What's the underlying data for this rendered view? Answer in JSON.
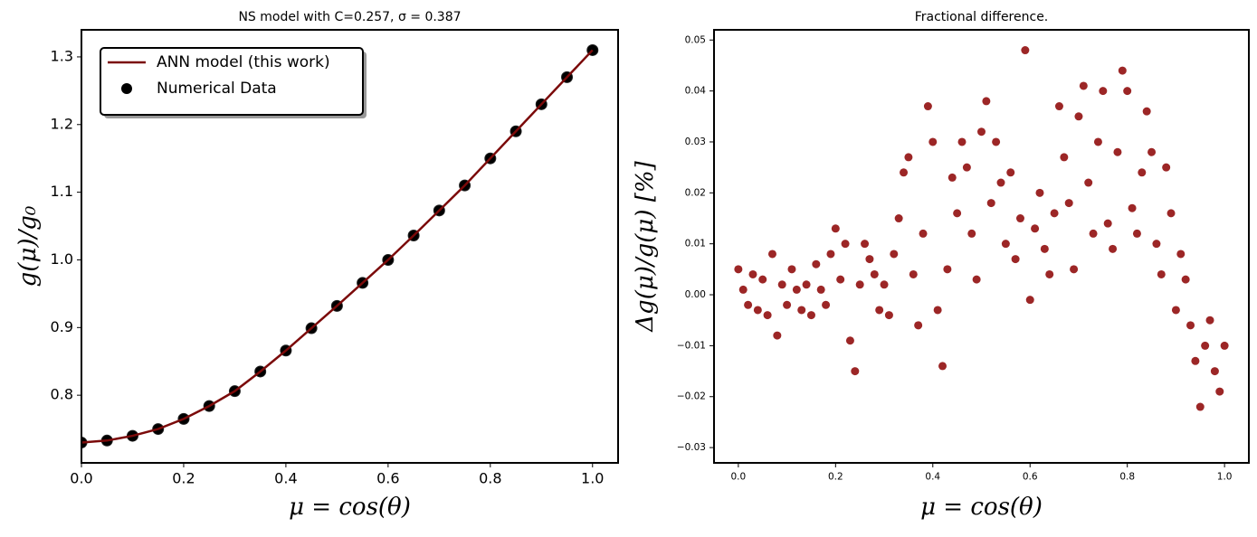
{
  "chart_data": [
    {
      "type": "line",
      "title": "NS model with C=0.257, σ = 0.387",
      "xlabel": "μ = cos(θ)",
      "ylabel": "g(μ)/g₀",
      "x": [
        0,
        0.05,
        0.1,
        0.15,
        0.2,
        0.25,
        0.3,
        0.35,
        0.4,
        0.45,
        0.5,
        0.55,
        0.6,
        0.65,
        0.7,
        0.75,
        0.8,
        0.85,
        0.9,
        0.95,
        1.0
      ],
      "series": [
        {
          "name": "ANN model (this work)",
          "type": "line",
          "color": "#7b0a0a",
          "values": [
            0.73,
            0.733,
            0.74,
            0.75,
            0.765,
            0.784,
            0.806,
            0.835,
            0.866,
            0.899,
            0.932,
            0.966,
            1.0,
            1.036,
            1.073,
            1.11,
            1.15,
            1.19,
            1.23,
            1.27,
            1.31
          ]
        },
        {
          "name": "Numerical Data",
          "type": "scatter",
          "color": "#000000",
          "values": [
            0.73,
            0.733,
            0.74,
            0.75,
            0.765,
            0.784,
            0.806,
            0.835,
            0.866,
            0.899,
            0.932,
            0.966,
            1.0,
            1.036,
            1.073,
            1.11,
            1.15,
            1.19,
            1.23,
            1.27,
            1.31
          ]
        }
      ],
      "xlim": [
        0,
        1.05
      ],
      "xticks": [
        {
          "value": 0,
          "label": "0.0"
        },
        0.2,
        0.4,
        0.6,
        0.8,
        {
          "value": 1,
          "label": "1.0"
        }
      ],
      "ylim": [
        0.7,
        1.34
      ],
      "yticks": [
        0.8,
        0.9,
        {
          "value": 1,
          "label": "1.0"
        },
        1.1,
        1.2,
        1.3
      ],
      "legend": "upper left",
      "grid": false
    },
    {
      "type": "scatter",
      "title": "Fractional difference.",
      "xlabel": "μ = cos(θ)",
      "ylabel": "Δg(μ)/g(μ)  [%]",
      "color": "#8b0000",
      "x": [
        0,
        0.01,
        0.02,
        0.03,
        0.04,
        0.05,
        0.06,
        0.07,
        0.08,
        0.09,
        0.1,
        0.11,
        0.12,
        0.13,
        0.14,
        0.15,
        0.16,
        0.17,
        0.18,
        0.19,
        0.2,
        0.21,
        0.22,
        0.23,
        0.24,
        0.25,
        0.26,
        0.27,
        0.28,
        0.29,
        0.3,
        0.31,
        0.32,
        0.33,
        0.34,
        0.35,
        0.36,
        0.37,
        0.38,
        0.39,
        0.4,
        0.41,
        0.42,
        0.43,
        0.44,
        0.45,
        0.46,
        0.47,
        0.48,
        0.49,
        0.5,
        0.51,
        0.52,
        0.53,
        0.54,
        0.55,
        0.56,
        0.57,
        0.58,
        0.59,
        0.6,
        0.61,
        0.62,
        0.63,
        0.64,
        0.65,
        0.66,
        0.67,
        0.68,
        0.69,
        0.7,
        0.71,
        0.72,
        0.73,
        0.74,
        0.75,
        0.76,
        0.77,
        0.78,
        0.79,
        0.8,
        0.81,
        0.82,
        0.83,
        0.84,
        0.85,
        0.86,
        0.87,
        0.88,
        0.89,
        0.9,
        0.91,
        0.92,
        0.93,
        0.94,
        0.95,
        0.96,
        0.97,
        0.98,
        0.99,
        1.0
      ],
      "values": [
        0.005,
        0.001,
        -0.002,
        0.004,
        -0.003,
        0.003,
        -0.004,
        0.008,
        -0.008,
        0.002,
        -0.002,
        0.005,
        0.001,
        -0.003,
        0.002,
        -0.004,
        0.006,
        0.001,
        -0.002,
        0.008,
        0.013,
        0.003,
        0.01,
        -0.009,
        -0.015,
        0.002,
        0.01,
        0.007,
        0.004,
        -0.003,
        0.002,
        -0.004,
        0.008,
        0.015,
        0.024,
        0.027,
        0.004,
        -0.006,
        0.012,
        0.037,
        0.03,
        -0.003,
        -0.014,
        0.005,
        0.023,
        0.016,
        0.03,
        0.025,
        0.012,
        0.003,
        0.032,
        0.038,
        0.018,
        0.03,
        0.022,
        0.01,
        0.024,
        0.007,
        0.015,
        0.048,
        -0.001,
        0.013,
        0.02,
        0.009,
        0.004,
        0.016,
        0.037,
        0.027,
        0.018,
        0.005,
        0.035,
        0.041,
        0.022,
        0.012,
        0.03,
        0.04,
        0.014,
        0.009,
        0.028,
        0.044,
        0.04,
        0.017,
        0.012,
        0.024,
        0.036,
        0.028,
        0.01,
        0.004,
        0.025,
        0.016,
        -0.003,
        0.008,
        0.003,
        -0.006,
        -0.013,
        -0.022,
        -0.01,
        -0.005,
        -0.015,
        -0.019,
        -0.01
      ],
      "xlim": [
        -0.05,
        1.05
      ],
      "xticks": [
        {
          "value": 0,
          "label": "0.0"
        },
        0.2,
        0.4,
        0.6,
        0.8,
        {
          "value": 1,
          "label": "1.0"
        }
      ],
      "ylim": [
        -0.033,
        0.052
      ],
      "yticks": [
        {
          "value": -0.03,
          "label": "−0.03"
        },
        {
          "value": -0.02,
          "label": "−0.02"
        },
        {
          "value": -0.01,
          "label": "−0.01"
        },
        {
          "value": 0,
          "label": "0.00"
        },
        0.01,
        0.02,
        0.03,
        0.04,
        0.05
      ],
      "grid": false
    }
  ]
}
